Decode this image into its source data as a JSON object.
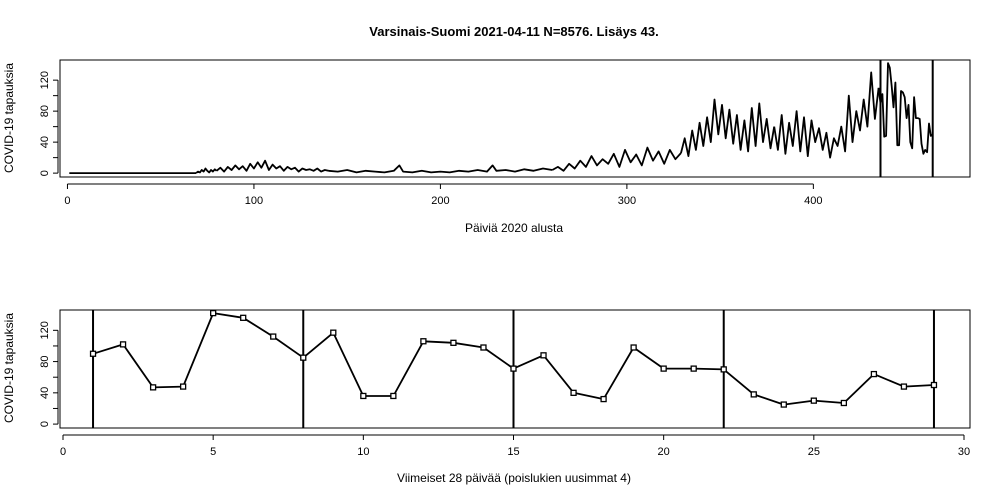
{
  "chart_data": [
    {
      "type": "line",
      "title": "Varsinais-Suomi 2021-04-11 N=8576. Lisäys 43.",
      "xlabel": "Päiviä 2020 alusta",
      "ylabel": "COVID-19 tapauksia",
      "xlim": [
        -4,
        484
      ],
      "ylim": [
        -5,
        146
      ],
      "xticks": [
        0,
        100,
        200,
        300,
        400
      ],
      "yticks": [
        0,
        20,
        40,
        60,
        80,
        100,
        120
      ],
      "ytick_labels": [
        "0",
        "",
        "40",
        "",
        "80",
        "",
        "120"
      ],
      "vlines": [
        436,
        464
      ],
      "segments": [
        {
          "x": [
            1,
            69
          ],
          "y": [
            0,
            0
          ]
        },
        {
          "x": [
            69,
            70,
            71,
            72,
            73,
            74,
            75,
            76,
            77,
            78,
            79,
            80
          ],
          "y": [
            0,
            2,
            1,
            4,
            2,
            6,
            3,
            1,
            4,
            2,
            5,
            3
          ]
        },
        {
          "x": [
            80,
            82,
            84,
            86,
            88,
            90,
            92,
            94,
            96,
            98,
            100,
            102,
            104,
            106,
            108,
            110,
            112,
            114,
            116,
            118,
            120,
            122,
            124,
            126,
            128,
            130,
            132,
            134,
            136,
            138,
            140
          ],
          "y": [
            3,
            7,
            2,
            8,
            4,
            10,
            5,
            9,
            3,
            12,
            6,
            14,
            7,
            16,
            4,
            11,
            6,
            9,
            3,
            8,
            5,
            7,
            2,
            6,
            4,
            5,
            3,
            6,
            2,
            4,
            3
          ]
        },
        {
          "x": [
            140,
            145,
            150,
            155,
            160,
            165,
            170,
            175,
            178,
            180,
            185,
            190,
            195,
            200,
            205,
            210,
            215,
            220,
            225,
            228,
            230,
            235,
            240,
            245,
            250,
            255,
            260
          ],
          "y": [
            3,
            2,
            4,
            1,
            3,
            2,
            1,
            3,
            10,
            2,
            1,
            3,
            1,
            2,
            1,
            3,
            2,
            4,
            2,
            10,
            3,
            4,
            2,
            5,
            3,
            6,
            4
          ]
        },
        {
          "x": [
            260,
            263,
            266,
            269,
            272,
            275,
            278,
            281,
            284,
            287,
            290,
            293,
            296,
            299,
            302,
            305,
            308,
            311,
            314,
            317,
            320,
            323,
            326,
            329
          ],
          "y": [
            4,
            8,
            3,
            12,
            6,
            16,
            8,
            22,
            10,
            18,
            12,
            25,
            8,
            30,
            14,
            24,
            10,
            33,
            16,
            28,
            12,
            30,
            18,
            26
          ]
        },
        {
          "x": [
            329,
            331,
            333,
            335,
            337,
            339,
            341,
            343,
            345,
            347,
            349,
            351,
            353,
            355,
            357,
            359,
            361,
            363,
            365,
            367,
            369,
            371,
            373,
            375,
            377,
            379
          ],
          "y": [
            26,
            45,
            22,
            55,
            30,
            65,
            35,
            72,
            40,
            95,
            50,
            88,
            45,
            82,
            38,
            75,
            30,
            68,
            28,
            84,
            35,
            90,
            40,
            70,
            32,
            60
          ]
        },
        {
          "x": [
            379,
            381,
            383,
            385,
            387,
            389,
            391,
            393,
            395,
            397,
            399,
            401,
            403,
            405,
            407,
            409,
            411,
            413,
            415,
            417,
            419,
            421,
            423,
            425,
            427,
            429,
            431,
            433,
            435
          ],
          "y": [
            60,
            30,
            75,
            25,
            65,
            35,
            80,
            28,
            72,
            22,
            68,
            40,
            58,
            30,
            52,
            20,
            45,
            35,
            60,
            28,
            100,
            40,
            80,
            55,
            95,
            60,
            130,
            70,
            110
          ]
        },
        {
          "x": [
            435,
            436,
            437,
            438,
            439,
            440,
            441,
            442,
            443,
            444,
            445,
            446,
            447,
            448,
            449,
            450,
            451,
            452,
            453,
            454,
            455,
            456,
            457,
            458,
            459,
            460,
            461,
            462,
            463,
            464
          ],
          "y": [
            110,
            90,
            102,
            47,
            48,
            142,
            136,
            112,
            85,
            117,
            36,
            36,
            106,
            104,
            98,
            71,
            88,
            40,
            32,
            98,
            71,
            71,
            70,
            38,
            25,
            30,
            27,
            64,
            48,
            50
          ]
        }
      ]
    },
    {
      "type": "line",
      "xlabel": "Viimeiset 28 päivää (poislukien uusimmat 4)",
      "ylabel": "COVID-19 tapauksia",
      "xlim": [
        -0.1,
        30.2
      ],
      "ylim": [
        -5,
        146
      ],
      "xticks": [
        0,
        5,
        10,
        15,
        20,
        25,
        30
      ],
      "yticks": [
        0,
        20,
        40,
        60,
        80,
        100,
        120
      ],
      "ytick_labels": [
        "0",
        "",
        "40",
        "",
        "80",
        "",
        "120"
      ],
      "vlines": [
        1,
        8,
        15,
        22,
        29
      ],
      "x": [
        1,
        2,
        3,
        4,
        5,
        6,
        7,
        8,
        9,
        10,
        11,
        12,
        13,
        14,
        15,
        16,
        17,
        18,
        19,
        20,
        21,
        22,
        23,
        24,
        25,
        26,
        27,
        28,
        29
      ],
      "y": [
        90,
        102,
        47,
        48,
        142,
        136,
        112,
        85,
        117,
        36,
        36,
        106,
        104,
        98,
        71,
        88,
        40,
        32,
        98,
        71,
        71,
        70,
        38,
        25,
        30,
        27,
        64,
        48,
        50
      ]
    }
  ]
}
